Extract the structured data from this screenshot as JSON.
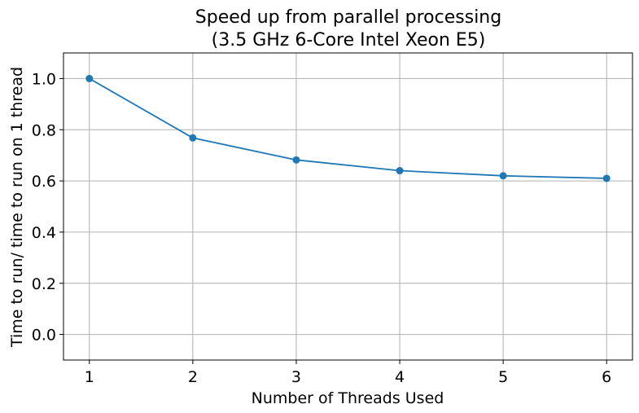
{
  "chart_data": {
    "type": "line",
    "title_lines": [
      "Speed up from parallel processing",
      "(3.5 GHz 6-Core Intel Xeon E5)"
    ],
    "xlabel": "Number of Threads Used",
    "ylabel": "Time to run/ time to run on 1 thread",
    "x": [
      1,
      2,
      3,
      4,
      5,
      6
    ],
    "series": [
      {
        "values": [
          1.0,
          0.768,
          0.682,
          0.64,
          0.62,
          0.61
        ],
        "color": "#1f77b4",
        "marker": "circle"
      }
    ],
    "xlim": [
      0.75,
      6.25
    ],
    "ylim": [
      -0.1,
      1.1
    ],
    "xticks": [
      1,
      2,
      3,
      4,
      5,
      6
    ],
    "yticks": [
      0.0,
      0.2,
      0.4,
      0.6,
      0.8,
      1.0
    ],
    "ytick_labels": [
      "0.0",
      "0.2",
      "0.4",
      "0.6",
      "0.8",
      "1.0"
    ],
    "grid": true
  }
}
